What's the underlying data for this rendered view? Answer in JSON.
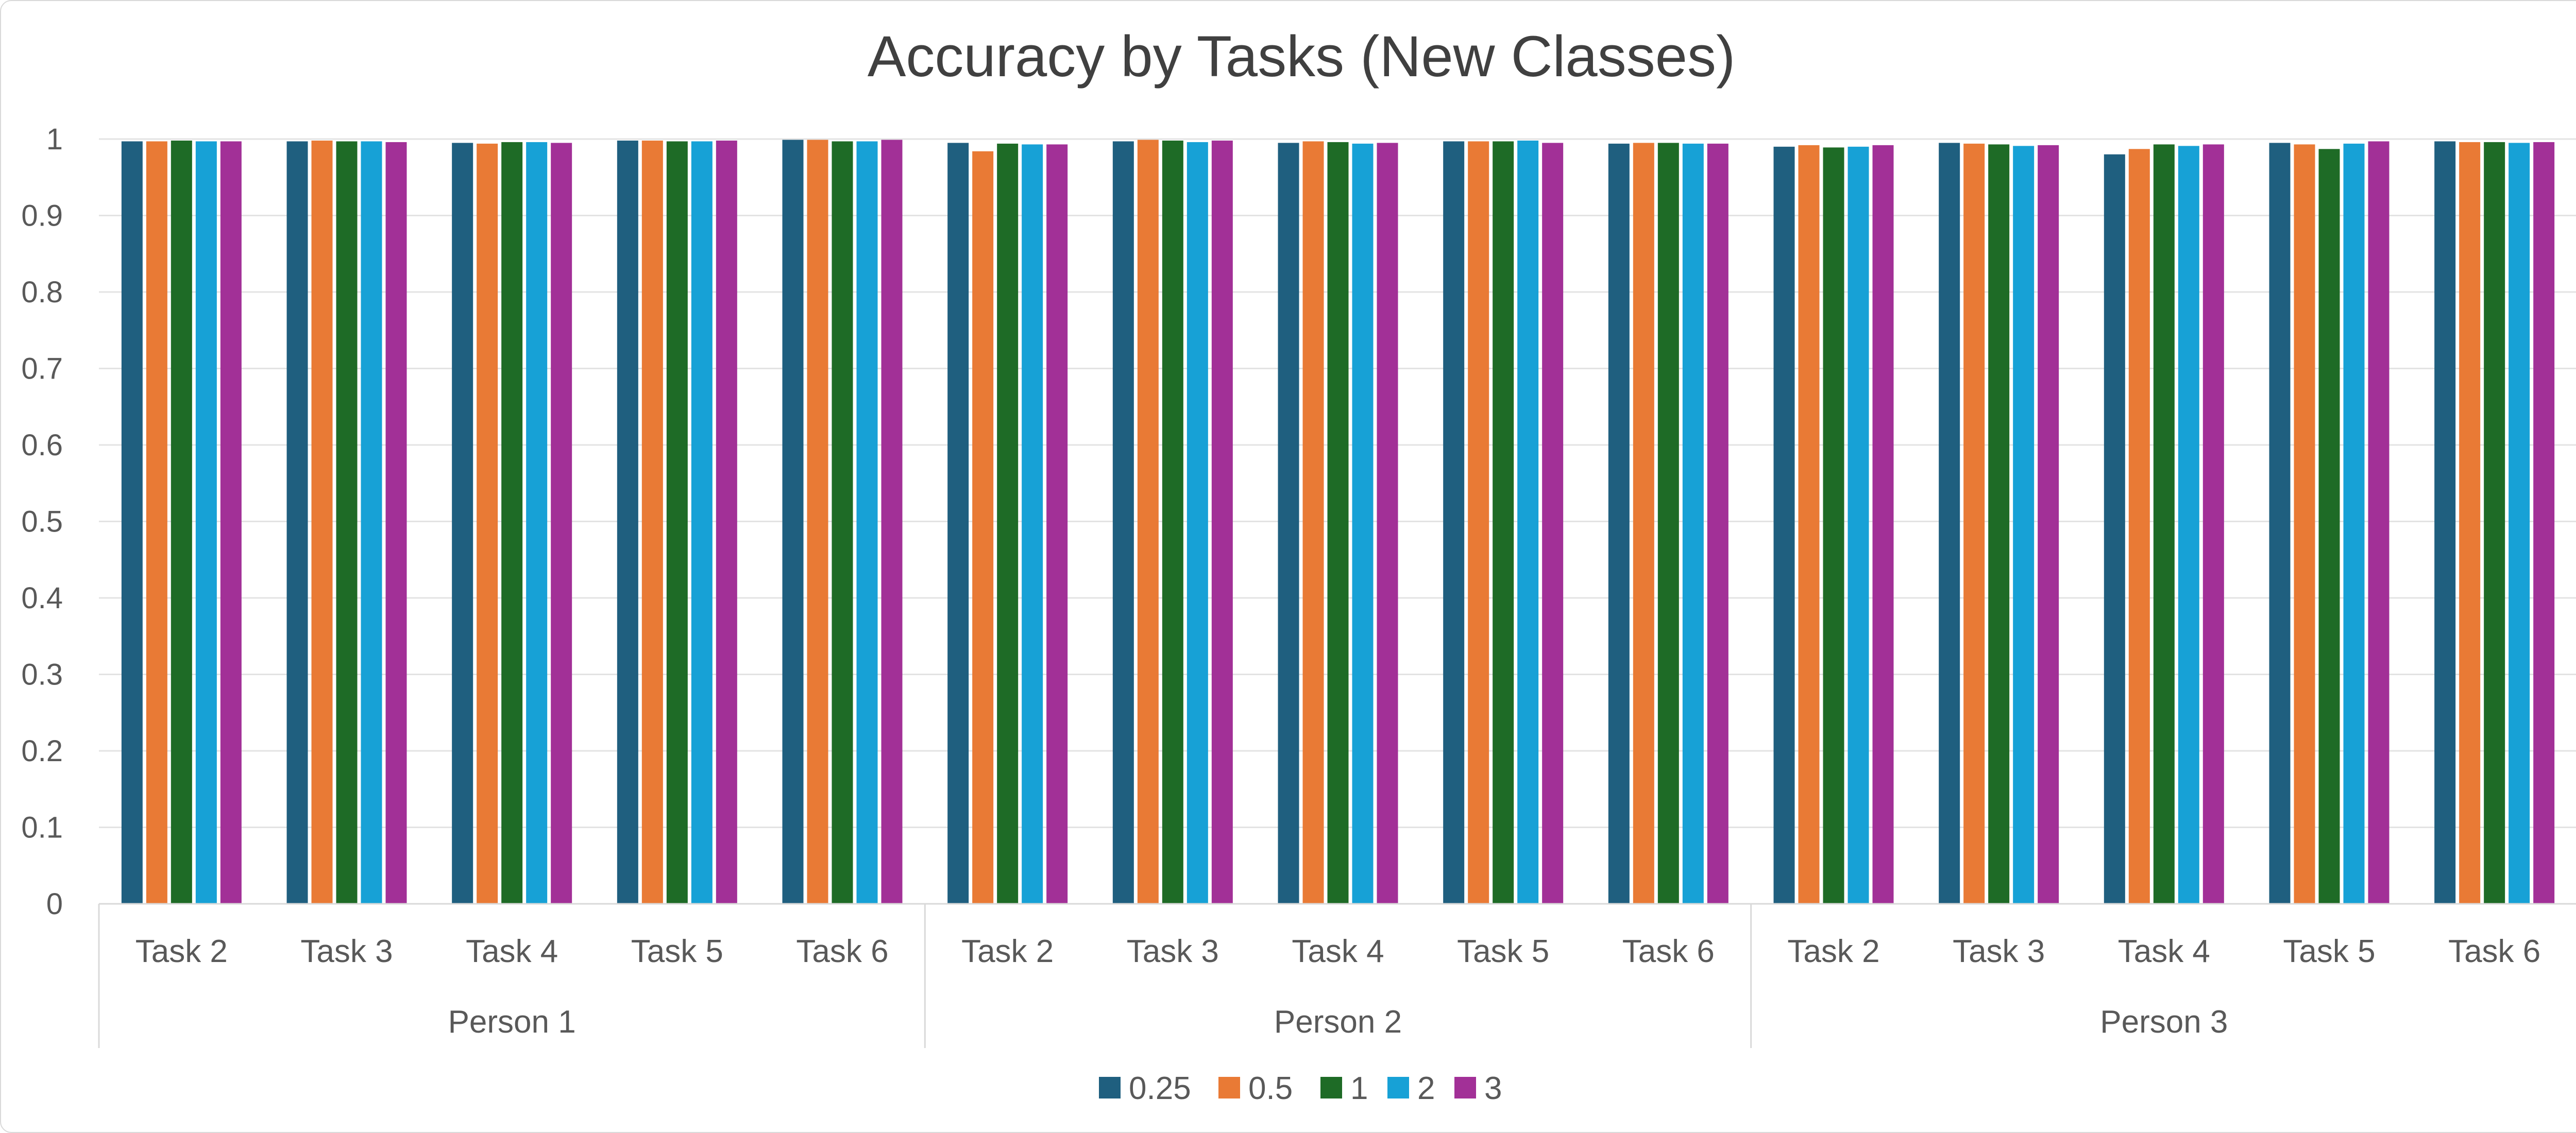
{
  "chart_data": {
    "type": "bar",
    "title": "Accuracy by Tasks (New Classes)",
    "xlabel": "",
    "ylabel": "",
    "ylim": [
      0,
      1
    ],
    "yticks": [
      "0",
      "0.1",
      "0.2",
      "0.3",
      "0.4",
      "0.5",
      "0.6",
      "0.7",
      "0.8",
      "0.9",
      "1"
    ],
    "grid": true,
    "legend_position": "bottom",
    "groups": [
      {
        "label": "Person 1",
        "categories": [
          "Task 2",
          "Task 3",
          "Task 4",
          "Task 5",
          "Task 6"
        ]
      },
      {
        "label": "Person 2",
        "categories": [
          "Task 2",
          "Task 3",
          "Task 4",
          "Task 5",
          "Task 6"
        ]
      },
      {
        "label": "Person 3",
        "categories": [
          "Task 2",
          "Task 3",
          "Task 4",
          "Task 5",
          "Task 6"
        ]
      }
    ],
    "series": [
      {
        "name": "0.25",
        "color": "#1f5f7f",
        "values": [
          0.997,
          0.997,
          0.995,
          0.998,
          0.999,
          0.995,
          0.997,
          0.995,
          0.997,
          0.994,
          0.99,
          0.995,
          0.98,
          0.995,
          0.997
        ]
      },
      {
        "name": "0.5",
        "color": "#e97a35",
        "values": [
          0.997,
          0.998,
          0.994,
          0.998,
          0.999,
          0.984,
          0.999,
          0.997,
          0.997,
          0.995,
          0.992,
          0.994,
          0.987,
          0.993,
          0.996
        ]
      },
      {
        "name": "1",
        "color": "#1e6b26",
        "values": [
          0.998,
          0.997,
          0.996,
          0.997,
          0.997,
          0.994,
          0.998,
          0.996,
          0.997,
          0.995,
          0.989,
          0.993,
          0.993,
          0.987,
          0.996
        ]
      },
      {
        "name": "2",
        "color": "#17a1d6",
        "values": [
          0.997,
          0.997,
          0.996,
          0.997,
          0.997,
          0.993,
          0.996,
          0.994,
          0.998,
          0.994,
          0.99,
          0.991,
          0.991,
          0.994,
          0.995
        ]
      },
      {
        "name": "3",
        "color": "#a23097",
        "values": [
          0.997,
          0.996,
          0.995,
          0.998,
          0.999,
          0.993,
          0.998,
          0.995,
          0.995,
          0.994,
          0.992,
          0.992,
          0.993,
          0.997,
          0.996
        ]
      }
    ]
  }
}
